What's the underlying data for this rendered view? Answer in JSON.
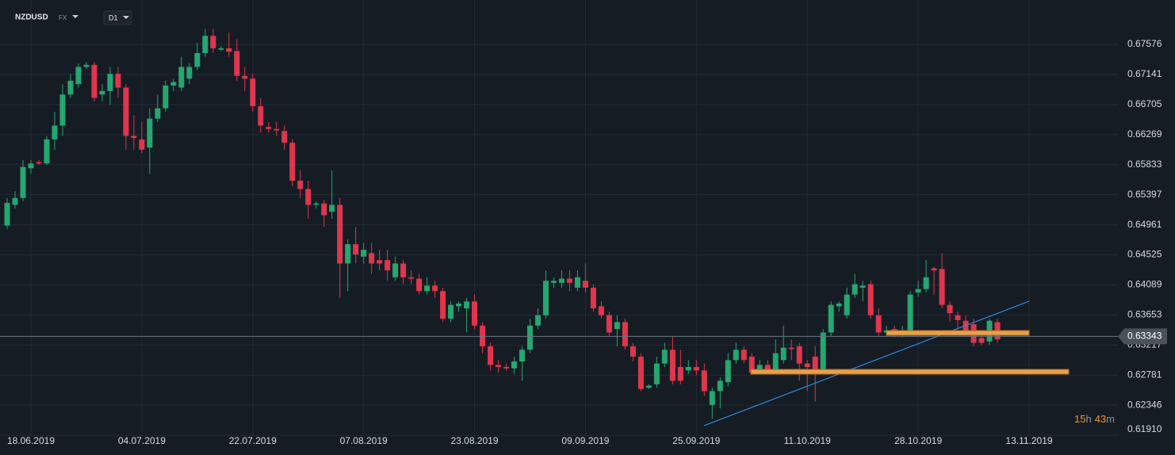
{
  "ui": {
    "symbol": "NZDUSD",
    "market": "FX",
    "timeframe": "D1",
    "countdown": [
      "15",
      "h",
      "43",
      "m"
    ]
  },
  "chart_data": {
    "type": "candlestick",
    "up_color": "#26a671",
    "down_color": "#e0364d",
    "grid": true,
    "last_price": 0.63343,
    "ylim": [
      0.619,
      0.6822
    ],
    "yticks": [
      0.67576,
      0.67141,
      0.66705,
      0.66269,
      0.65833,
      0.65397,
      0.64961,
      0.64525,
      0.64089,
      0.63653,
      0.63217,
      0.62781,
      0.62346,
      {
        "value": 0.6191,
        "label": "0.61910"
      }
    ],
    "categories": [
      null,
      null,
      null,
      "18.06.2019",
      null,
      null,
      null,
      null,
      null,
      null,
      null,
      null,
      null,
      null,
      null,
      null,
      null,
      "04.07.2019",
      null,
      null,
      null,
      null,
      null,
      null,
      null,
      null,
      null,
      null,
      null,
      null,
      null,
      "22.07.2019",
      null,
      null,
      null,
      null,
      null,
      null,
      null,
      null,
      null,
      null,
      null,
      null,
      null,
      "07.08.2019",
      null,
      null,
      null,
      null,
      null,
      null,
      null,
      null,
      null,
      null,
      null,
      null,
      null,
      "23.08.2019",
      null,
      null,
      null,
      null,
      null,
      null,
      null,
      null,
      null,
      null,
      null,
      null,
      null,
      "09.09.2019",
      null,
      null,
      null,
      null,
      null,
      null,
      null,
      null,
      null,
      null,
      null,
      null,
      null,
      "25.09.2019",
      null,
      null,
      null,
      null,
      null,
      null,
      null,
      null,
      null,
      null,
      null,
      null,
      null,
      "11.10.2019",
      null,
      null,
      null,
      null,
      null,
      null,
      null,
      null,
      null,
      null,
      null,
      null,
      null,
      "28.10.2019",
      null,
      null,
      null,
      null,
      null,
      null,
      null,
      null,
      null,
      null,
      null,
      null,
      null,
      "13.11.2019"
    ],
    "open": [
      0.6495,
      0.6525,
      0.6535,
      0.6578,
      0.6587,
      0.6585,
      0.662,
      0.664,
      0.6685,
      0.67,
      0.6725,
      0.6728,
      0.6685,
      0.669,
      0.6715,
      0.6695,
      0.6625,
      0.662,
      0.6608,
      0.665,
      0.6665,
      0.6698,
      0.6695,
      0.6708,
      0.6725,
      0.6745,
      0.677,
      0.675,
      0.6752,
      0.6748,
      0.6712,
      0.6708,
      0.6668,
      0.6638,
      0.6635,
      0.6632,
      0.6615,
      0.656,
      0.6548,
      0.6525,
      0.6527,
      0.6515,
      0.6525,
      0.644,
      0.6468,
      0.645,
      0.6455,
      0.6445,
      0.6445,
      0.642,
      0.644,
      0.642,
      0.6418,
      0.64,
      0.6408,
      0.64,
      0.636,
      0.6378,
      0.6375,
      0.6385,
      0.635,
      0.632,
      0.6293,
      0.629,
      0.6288,
      0.6298,
      0.6315,
      0.635,
      0.6365,
      0.6412,
      0.6412,
      0.6418,
      0.6405,
      0.6415,
      0.6405,
      0.6378,
      0.6365,
      0.6345,
      0.6355,
      0.632,
      0.6305,
      0.626,
      0.6265,
      0.6295,
      0.6315,
      0.629,
      0.6285,
      0.629,
      0.6285,
      0.6235,
      0.6255,
      0.6268,
      0.63,
      0.6315,
      0.6305,
      0.6285,
      0.6293,
      0.6285,
      0.63,
      0.6318,
      0.632,
      0.6295,
      0.6305,
      0.6285,
      0.634,
      0.6378,
      0.6365,
      0.6395,
      0.6405,
      0.641,
      0.6365,
      0.634,
      0.6345,
      0.6336,
      0.6342,
      0.6398,
      0.6403,
      0.6433,
      0.6432,
      0.638,
      0.6365,
      0.6357,
      0.6352,
      0.6332,
      0.6327,
      0.6355,
      null,
      null,
      null,
      null
    ],
    "high": [
      0.6535,
      0.6545,
      0.659,
      0.659,
      0.659,
      0.6625,
      0.666,
      0.67,
      0.6715,
      0.673,
      0.6732,
      0.6732,
      0.67,
      0.6725,
      0.6725,
      0.67,
      0.6655,
      0.6645,
      0.6665,
      0.6685,
      0.6705,
      0.6708,
      0.674,
      0.673,
      0.676,
      0.678,
      0.678,
      0.6755,
      0.6775,
      0.6765,
      0.6725,
      0.6715,
      0.668,
      0.6645,
      0.6645,
      0.664,
      0.662,
      0.6575,
      0.656,
      0.653,
      0.6532,
      0.6575,
      0.6535,
      0.6475,
      0.6493,
      0.647,
      0.647,
      0.646,
      0.646,
      0.645,
      0.6445,
      0.643,
      0.6425,
      0.642,
      0.6415,
      0.6405,
      0.6385,
      0.6385,
      0.639,
      0.6395,
      0.6355,
      0.6325,
      0.63,
      0.6295,
      0.6305,
      0.632,
      0.636,
      0.6375,
      0.643,
      0.642,
      0.643,
      0.643,
      0.643,
      0.644,
      0.641,
      0.6385,
      0.637,
      0.6365,
      0.636,
      0.6325,
      0.631,
      0.6265,
      0.6305,
      0.6325,
      0.6335,
      0.6315,
      0.63,
      0.63,
      0.6295,
      0.626,
      0.6275,
      0.631,
      0.6325,
      0.632,
      0.631,
      0.63,
      0.63,
      0.633,
      0.635,
      0.633,
      0.6325,
      0.63,
      0.632,
      0.6345,
      0.6385,
      0.6385,
      0.6405,
      0.6425,
      0.6415,
      0.6415,
      0.6375,
      0.635,
      0.635,
      0.635,
      0.64,
      0.6415,
      0.6445,
      0.6435,
      0.6455,
      0.6385,
      0.637,
      0.6365,
      0.636,
      0.634,
      0.636,
      0.636,
      null,
      null,
      null,
      null
    ],
    "low": [
      0.649,
      0.652,
      0.653,
      0.657,
      0.6583,
      0.6583,
      0.6605,
      0.6625,
      0.668,
      0.6695,
      0.6722,
      0.6675,
      0.6675,
      0.667,
      0.668,
      0.6605,
      0.6605,
      0.66,
      0.657,
      0.6645,
      0.666,
      0.669,
      0.669,
      0.67,
      0.672,
      0.674,
      0.6745,
      0.6748,
      0.674,
      0.6705,
      0.669,
      0.666,
      0.663,
      0.663,
      0.6625,
      0.6605,
      0.6552,
      0.6535,
      0.6505,
      0.652,
      0.6493,
      0.6505,
      0.639,
      0.64,
      0.644,
      0.644,
      0.6425,
      0.643,
      0.6415,
      0.6415,
      0.641,
      0.641,
      0.6395,
      0.6395,
      0.639,
      0.6355,
      0.6355,
      0.637,
      0.634,
      0.6345,
      0.631,
      0.6285,
      0.6282,
      0.6285,
      0.628,
      0.627,
      0.631,
      0.6345,
      0.636,
      0.6405,
      0.6405,
      0.64,
      0.64,
      0.6398,
      0.637,
      0.636,
      0.6335,
      0.632,
      0.6315,
      0.6298,
      0.6255,
      0.6258,
      0.626,
      0.629,
      0.6265,
      0.6265,
      0.628,
      0.6278,
      0.6248,
      0.6215,
      0.623,
      0.6262,
      0.6295,
      0.6295,
      0.628,
      0.6282,
      0.628,
      0.6282,
      0.6295,
      0.63,
      0.627,
      0.6255,
      0.624,
      0.628,
      0.6335,
      0.637,
      0.636,
      0.639,
      0.6385,
      0.636,
      0.6335,
      0.6338,
      0.6333,
      0.6333,
      0.6338,
      0.6392,
      0.6398,
      0.6395,
      0.6375,
      0.6355,
      0.6345,
      0.6335,
      0.632,
      0.6322,
      0.6322,
      0.6325,
      null,
      null,
      null,
      null
    ],
    "close": [
      0.6528,
      0.6535,
      0.658,
      0.6585,
      0.6585,
      0.662,
      0.664,
      0.6685,
      0.6705,
      0.6725,
      0.6728,
      0.668,
      0.669,
      0.6715,
      0.6695,
      0.6625,
      0.6622,
      0.6605,
      0.665,
      0.6665,
      0.6698,
      0.6703,
      0.6725,
      0.6725,
      0.6745,
      0.677,
      0.6752,
      0.6752,
      0.6747,
      0.6712,
      0.6708,
      0.6668,
      0.664,
      0.6635,
      0.6633,
      0.6615,
      0.656,
      0.6548,
      0.6525,
      0.6527,
      0.651,
      0.6525,
      0.644,
      0.6468,
      0.6453,
      0.646,
      0.644,
      0.644,
      0.643,
      0.644,
      0.642,
      0.6418,
      0.64,
      0.6408,
      0.64,
      0.636,
      0.638,
      0.6382,
      0.6385,
      0.635,
      0.632,
      0.6293,
      0.629,
      0.6288,
      0.6298,
      0.6315,
      0.635,
      0.6365,
      0.6415,
      0.6415,
      0.6418,
      0.6412,
      0.642,
      0.6405,
      0.6375,
      0.6365,
      0.634,
      0.6355,
      0.632,
      0.6305,
      0.6258,
      0.6263,
      0.6295,
      0.6315,
      0.627,
      0.627,
      0.629,
      0.6285,
      0.6255,
      0.6255,
      0.627,
      0.63,
      0.6315,
      0.63,
      0.6282,
      0.6293,
      0.6285,
      0.631,
      0.6318,
      0.6316,
      0.6295,
      0.629,
      0.6285,
      0.634,
      0.638,
      0.6382,
      0.6395,
      0.641,
      0.6408,
      0.6365,
      0.634,
      0.6343,
      0.6338,
      0.6342,
      0.6395,
      0.6403,
      0.642,
      0.643,
      0.638,
      0.6368,
      0.6358,
      0.634,
      0.6325,
      0.6325,
      0.6357,
      0.633,
      null,
      null,
      null,
      null
    ]
  }
}
